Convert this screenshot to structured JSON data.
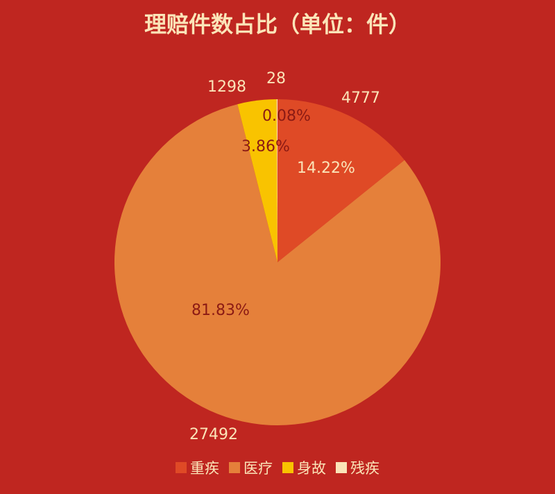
{
  "chart_data": {
    "type": "pie",
    "title": "理赔件数占比（单位：件）",
    "categories": [
      "重疾",
      "医疗",
      "身故",
      "残疾"
    ],
    "values": [
      4777,
      27492,
      1298,
      28
    ],
    "percent_labels": [
      "14.22%",
      "81.83%",
      "3.86%",
      "0.08%"
    ],
    "colors": [
      "#df4a26",
      "#e5803a",
      "#f9c300",
      "#fbe4b8"
    ],
    "legend": "bottom",
    "label_color": "#fbe4b8",
    "percent_label_dark_color": "#8b1a14"
  }
}
